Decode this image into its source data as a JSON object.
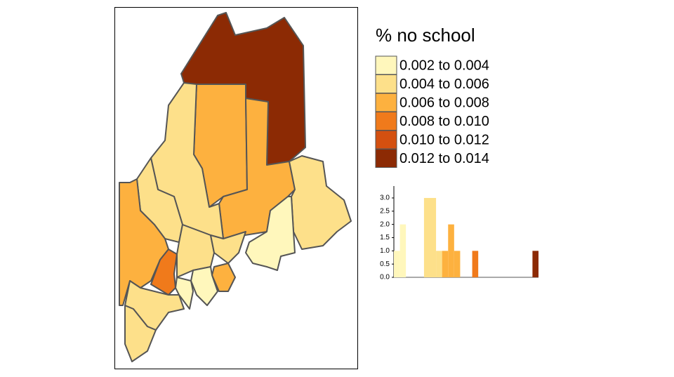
{
  "legend": {
    "title": "% no school",
    "items": [
      {
        "label": "0.002 to 0.004",
        "color": "#fff7bc"
      },
      {
        "label": "0.004 to 0.006",
        "color": "#fde08a"
      },
      {
        "label": "0.006 to 0.008",
        "color": "#fdb13f"
      },
      {
        "label": "0.008 to 0.010",
        "color": "#f07a1b"
      },
      {
        "label": "0.010 to 0.012",
        "color": "#d45010"
      },
      {
        "label": "0.012 to 0.014",
        "color": "#8c2a04"
      }
    ]
  },
  "histogram": {
    "type": "histogram",
    "bins": [
      0.002,
      0.0025,
      0.003,
      0.0035,
      0.004,
      0.0045,
      0.005,
      0.0055,
      0.006,
      0.0065,
      0.007,
      0.0075,
      0.008,
      0.0085,
      0.009,
      0.0095,
      0.01,
      0.0105,
      0.011,
      0.0115,
      0.012,
      0.0125,
      0.013,
      0.0135,
      0.014
    ],
    "counts": [
      1,
      2,
      0,
      0,
      0,
      3,
      3,
      1,
      1,
      2,
      1,
      0,
      0,
      1,
      0,
      0,
      0,
      0,
      0,
      0,
      0,
      0,
      0,
      1
    ],
    "colors": [
      "#fff7bc",
      "#fff7bc",
      "#fff7bc",
      "#fff7bc",
      "#fde08a",
      "#fde08a",
      "#fde08a",
      "#fde08a",
      "#fdb13f",
      "#fdb13f",
      "#fdb13f",
      "#fdb13f",
      "#f07a1b",
      "#f07a1b",
      "#f07a1b",
      "#f07a1b",
      "#d45010",
      "#d45010",
      "#d45010",
      "#d45010",
      "#8c2a04",
      "#8c2a04",
      "#8c2a04",
      "#8c2a04"
    ],
    "xlim": [
      0.002,
      0.014
    ],
    "ylim": [
      0,
      3.45
    ],
    "yticks": [
      {
        "value": 0,
        "label": "0.0"
      },
      {
        "value": 0.5,
        "label": "0.5"
      },
      {
        "value": 1,
        "label": "1.0"
      },
      {
        "value": 1.5,
        "label": "1.5"
      },
      {
        "value": 2,
        "label": "2.0"
      },
      {
        "value": 2.5,
        "label": "2.5"
      },
      {
        "value": 3,
        "label": "3.0"
      }
    ]
  },
  "map": {
    "region_colors": [
      "#8c2a04",
      "#fdb13f",
      "#fdb13f",
      "#fde08a",
      "#fde08a",
      "#fff7bc",
      "#fde08a",
      "#fdb13f",
      "#f07a1b",
      "#fde08a",
      "#fde08a",
      "#fde08a",
      "#fde08a",
      "#fdb13f",
      "#fff7bc",
      "#fff7bc"
    ]
  }
}
